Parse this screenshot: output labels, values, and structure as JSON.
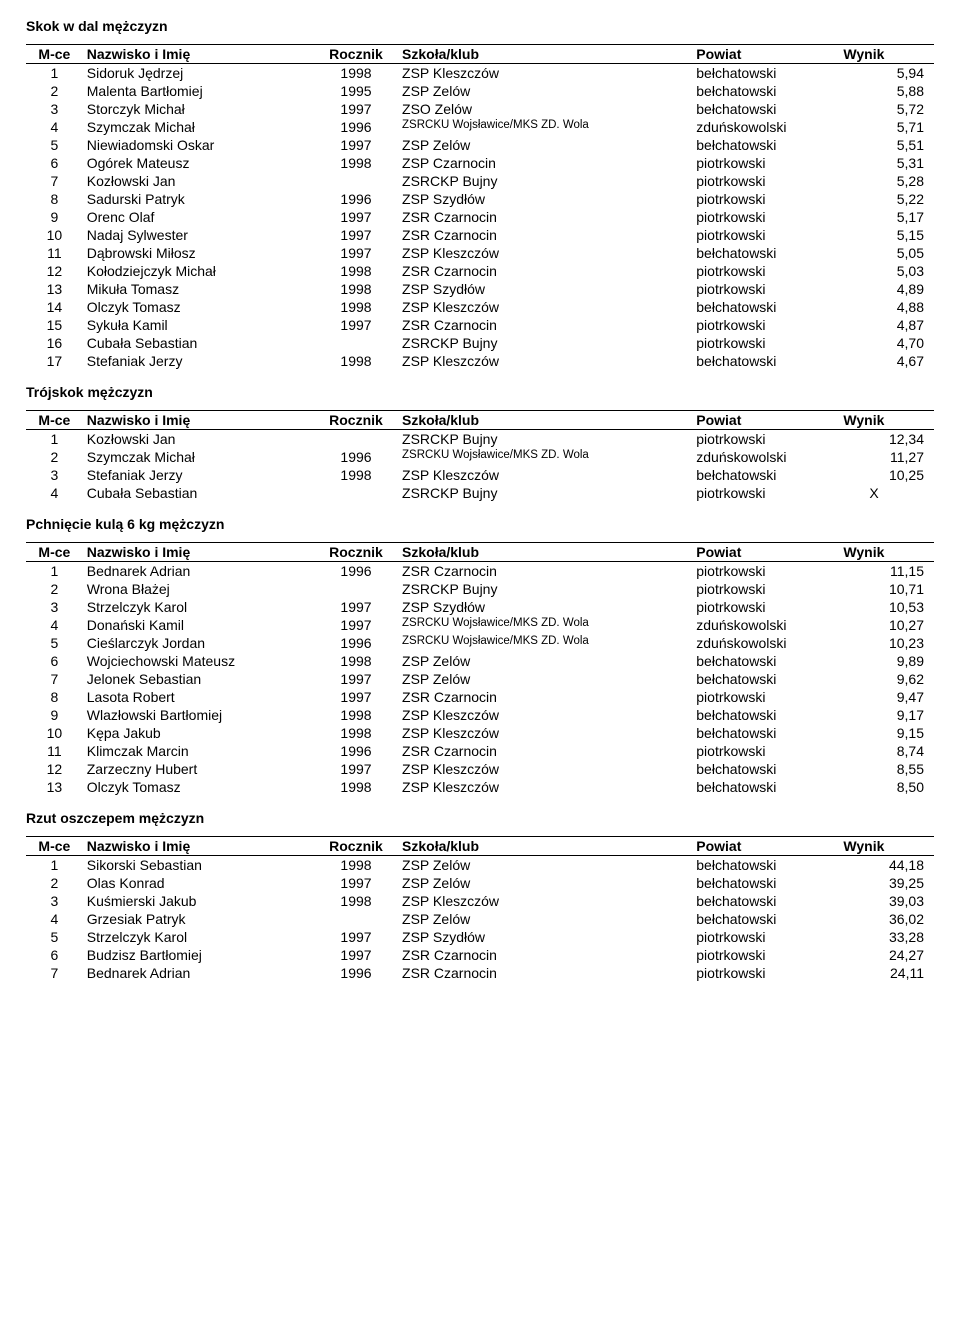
{
  "sections": [
    {
      "title": "Skok w dal mężczyzn",
      "headers": {
        "mce": "M-ce",
        "name": "Nazwisko i Imię",
        "year": "Rocznik",
        "school": "Szkoła/klub",
        "powiat": "Powiat",
        "wynik": "Wynik"
      },
      "rows": [
        {
          "mce": "1",
          "name": "Sidoruk Jędrzej",
          "year": "1998",
          "school": "ZSP Kleszczów",
          "small": false,
          "powiat": "bełchatowski",
          "wynik": "5,94"
        },
        {
          "mce": "2",
          "name": "Malenta Bartłomiej",
          "year": "1995",
          "school": "ZSP Zelów",
          "small": false,
          "powiat": "bełchatowski",
          "wynik": "5,88"
        },
        {
          "mce": "3",
          "name": "Storczyk Michał",
          "year": "1997",
          "school": "ZSO Zelów",
          "small": false,
          "powiat": "bełchatowski",
          "wynik": "5,72"
        },
        {
          "mce": "4",
          "name": "Szymczak Michał",
          "year": "1996",
          "school": "ZSRCKU Wojsławice/MKS ZD. Wola",
          "small": true,
          "powiat": "zduńskowolski",
          "wynik": "5,71"
        },
        {
          "mce": "5",
          "name": "Niewiadomski Oskar",
          "year": "1997",
          "school": "ZSP Zelów",
          "small": false,
          "powiat": "bełchatowski",
          "wynik": "5,51"
        },
        {
          "mce": "6",
          "name": "Ogórek Mateusz",
          "year": "1998",
          "school": "ZSP Czarnocin",
          "small": false,
          "powiat": "piotrkowski",
          "wynik": "5,31"
        },
        {
          "mce": "7",
          "name": "Kozłowski Jan",
          "year": "",
          "school": "ZSRCKP Bujny",
          "small": false,
          "powiat": "piotrkowski",
          "wynik": "5,28"
        },
        {
          "mce": "8",
          "name": "Sadurski Patryk",
          "year": "1996",
          "school": "ZSP Szydłów",
          "small": false,
          "powiat": "piotrkowski",
          "wynik": "5,22"
        },
        {
          "mce": "9",
          "name": "Orenc Olaf",
          "year": "1997",
          "school": "ZSR Czarnocin",
          "small": false,
          "powiat": "piotrkowski",
          "wynik": "5,17"
        },
        {
          "mce": "10",
          "name": "Nadaj Sylwester",
          "year": "1997",
          "school": "ZSR Czarnocin",
          "small": false,
          "powiat": "piotrkowski",
          "wynik": "5,15"
        },
        {
          "mce": "11",
          "name": "Dąbrowski Miłosz",
          "year": "1997",
          "school": "ZSP Kleszczów",
          "small": false,
          "powiat": "bełchatowski",
          "wynik": "5,05"
        },
        {
          "mce": "12",
          "name": "Kołodziejczyk Michał",
          "year": "1998",
          "school": "ZSR Czarnocin",
          "small": false,
          "powiat": "piotrkowski",
          "wynik": "5,03"
        },
        {
          "mce": "13",
          "name": "Mikuła Tomasz",
          "year": "1998",
          "school": "ZSP Szydłów",
          "small": false,
          "powiat": "piotrkowski",
          "wynik": "4,89"
        },
        {
          "mce": "14",
          "name": "Olczyk Tomasz",
          "year": "1998",
          "school": "ZSP Kleszczów",
          "small": false,
          "powiat": "bełchatowski",
          "wynik": "4,88"
        },
        {
          "mce": "15",
          "name": "Sykuła Kamil",
          "year": "1997",
          "school": "ZSR Czarnocin",
          "small": false,
          "powiat": "piotrkowski",
          "wynik": "4,87"
        },
        {
          "mce": "16",
          "name": "Cubała Sebastian",
          "year": "",
          "school": "ZSRCKP Bujny",
          "small": false,
          "powiat": "piotrkowski",
          "wynik": "4,70"
        },
        {
          "mce": "17",
          "name": "Stefaniak Jerzy",
          "year": "1998",
          "school": "ZSP Kleszczów",
          "small": false,
          "powiat": "bełchatowski",
          "wynik": "4,67"
        }
      ]
    },
    {
      "title": "Trójskok mężczyzn",
      "headers": {
        "mce": "M-ce",
        "name": "Nazwisko i Imię",
        "year": "Rocznik",
        "school": "Szkoła/klub",
        "powiat": "Powiat",
        "wynik": "Wynik"
      },
      "rows": [
        {
          "mce": "1",
          "name": "Kozłowski Jan",
          "year": "",
          "school": "ZSRCKP Bujny",
          "small": false,
          "powiat": "piotrkowski",
          "wynik": "12,34"
        },
        {
          "mce": "2",
          "name": "Szymczak Michał",
          "year": "1996",
          "school": "ZSRCKU Wojsławice/MKS ZD. Wola",
          "small": true,
          "powiat": "zduńskowolski",
          "wynik": "11,27"
        },
        {
          "mce": "3",
          "name": "Stefaniak Jerzy",
          "year": "1998",
          "school": "ZSP Kleszczów",
          "small": false,
          "powiat": "bełchatowski",
          "wynik": "10,25"
        },
        {
          "mce": "4",
          "name": "Cubała Sebastian",
          "year": "",
          "school": "ZSRCKP Bujny",
          "small": false,
          "powiat": "piotrkowski",
          "wynik": "X",
          "wynikX": true
        }
      ]
    },
    {
      "title": "Pchnięcie kulą 6 kg mężczyzn",
      "headers": {
        "mce": "M-ce",
        "name": "Nazwisko i Imię",
        "year": "Rocznik",
        "school": "Szkoła/klub",
        "powiat": "Powiat",
        "wynik": "Wynik"
      },
      "rows": [
        {
          "mce": "1",
          "name": "Bednarek Adrian",
          "year": "1996",
          "school": "ZSR Czarnocin",
          "small": false,
          "powiat": "piotrkowski",
          "wynik": "11,15"
        },
        {
          "mce": "2",
          "name": "Wrona Błażej",
          "year": "",
          "school": "ZSRCKP Bujny",
          "small": false,
          "powiat": "piotrkowski",
          "wynik": "10,71"
        },
        {
          "mce": "3",
          "name": "Strzelczyk Karol",
          "year": "1997",
          "school": "ZSP Szydłów",
          "small": false,
          "powiat": "piotrkowski",
          "wynik": "10,53"
        },
        {
          "mce": "4",
          "name": "Donański Kamil",
          "year": "1997",
          "school": "ZSRCKU Wojsławice/MKS ZD. Wola",
          "small": true,
          "powiat": "zduńskowolski",
          "wynik": "10,27"
        },
        {
          "mce": "5",
          "name": "Cieślarczyk Jordan",
          "year": "1996",
          "school": "ZSRCKU Wojsławice/MKS ZD. Wola",
          "small": true,
          "powiat": "zduńskowolski",
          "wynik": "10,23"
        },
        {
          "mce": "6",
          "name": "Wojciechowski Mateusz",
          "year": "1998",
          "school": "ZSP Zelów",
          "small": false,
          "powiat": "bełchatowski",
          "wynik": "9,89"
        },
        {
          "mce": "7",
          "name": "Jelonek Sebastian",
          "year": "1997",
          "school": "ZSP Zelów",
          "small": false,
          "powiat": "bełchatowski",
          "wynik": "9,62"
        },
        {
          "mce": "8",
          "name": "Lasota Robert",
          "year": "1997",
          "school": "ZSR Czarnocin",
          "small": false,
          "powiat": "piotrkowski",
          "wynik": "9,47"
        },
        {
          "mce": "9",
          "name": "Wlazłowski Bartłomiej",
          "year": "1998",
          "school": "ZSP Kleszczów",
          "small": false,
          "powiat": "bełchatowski",
          "wynik": "9,17"
        },
        {
          "mce": "10",
          "name": "Kępa Jakub",
          "year": "1998",
          "school": "ZSP Kleszczów",
          "small": false,
          "powiat": "bełchatowski",
          "wynik": "9,15"
        },
        {
          "mce": "11",
          "name": "Klimczak Marcin",
          "year": "1996",
          "school": "ZSR Czarnocin",
          "small": false,
          "powiat": "piotrkowski",
          "wynik": "8,74"
        },
        {
          "mce": "12",
          "name": "Zarzeczny Hubert",
          "year": "1997",
          "school": "ZSP Kleszczów",
          "small": false,
          "powiat": "bełchatowski",
          "wynik": "8,55"
        },
        {
          "mce": "13",
          "name": "Olczyk Tomasz",
          "year": "1998",
          "school": "ZSP Kleszczów",
          "small": false,
          "powiat": "bełchatowski",
          "wynik": "8,50"
        }
      ]
    },
    {
      "title": "Rzut oszczepem mężczyzn",
      "headers": {
        "mce": "M-ce",
        "name": "Nazwisko i Imię",
        "year": "Rocznik",
        "school": "Szkoła/klub",
        "powiat": "Powiat",
        "wynik": "Wynik"
      },
      "rows": [
        {
          "mce": "1",
          "name": "Sikorski Sebastian",
          "year": "1998",
          "school": "ZSP Zelów",
          "small": false,
          "powiat": "bełchatowski",
          "wynik": "44,18"
        },
        {
          "mce": "2",
          "name": "Olas Konrad",
          "year": "1997",
          "school": "ZSP Zelów",
          "small": false,
          "powiat": "bełchatowski",
          "wynik": "39,25"
        },
        {
          "mce": "3",
          "name": "Kuśmierski Jakub",
          "year": "1998",
          "school": "ZSP Kleszczów",
          "small": false,
          "powiat": "bełchatowski",
          "wynik": "39,03"
        },
        {
          "mce": "4",
          "name": "Grzesiak Patryk",
          "year": "",
          "school": "ZSP Zelów",
          "small": false,
          "powiat": "bełchatowski",
          "wynik": "36,02"
        },
        {
          "mce": "5",
          "name": "Strzelczyk Karol",
          "year": "1997",
          "school": "ZSP Szydłów",
          "small": false,
          "powiat": "piotrkowski",
          "wynik": "33,28"
        },
        {
          "mce": "6",
          "name": "Budzisz Bartłomiej",
          "year": "1997",
          "school": "ZSR Czarnocin",
          "small": false,
          "powiat": "piotrkowski",
          "wynik": "24,27"
        },
        {
          "mce": "7",
          "name": "Bednarek Adrian",
          "year": "1996",
          "school": "ZSR Czarnocin",
          "small": false,
          "powiat": "piotrkowski",
          "wynik": "24,11"
        }
      ]
    }
  ]
}
